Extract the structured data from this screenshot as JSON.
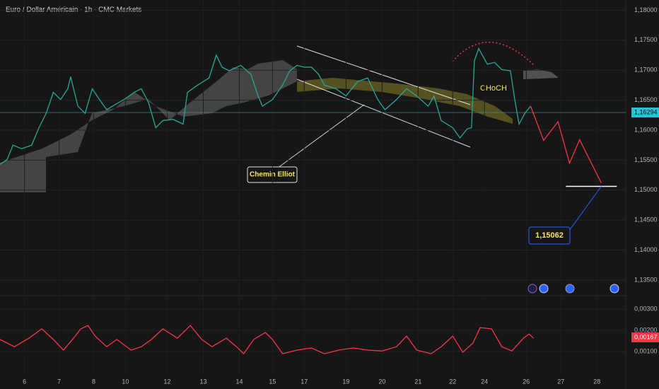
{
  "chart_data": [
    {
      "type": "line",
      "title": "Euro / Dollar Américain · 1h · CMC Markets",
      "color": "#26a69a",
      "x": [
        0,
        5,
        9,
        15,
        22,
        27,
        32,
        37,
        42,
        47,
        49,
        54,
        59,
        64,
        69,
        74,
        78,
        86,
        93,
        98,
        103,
        108,
        113,
        120,
        127,
        130,
        137,
        145,
        150,
        154,
        159,
        167,
        174,
        179,
        182,
        189,
        196,
        201,
        206,
        211,
        216,
        221,
        225,
        233,
        240,
        248,
        255,
        262,
        267,
        275,
        282,
        289,
        297,
        301,
        306,
        314,
        319,
        324,
        327,
        329,
        332,
        338,
        343,
        348,
        354,
        357,
        360,
        364,
        368
      ],
      "values": [
        1.1543,
        1.1551,
        1.1575,
        1.1569,
        1.1575,
        1.1604,
        1.1628,
        1.1663,
        1.1651,
        1.1669,
        1.1689,
        1.164,
        1.1628,
        1.1669,
        1.1651,
        1.1634,
        1.164,
        1.1651,
        1.1663,
        1.1669,
        1.1646,
        1.1604,
        1.1616,
        1.1618,
        1.161,
        1.1663,
        1.1675,
        1.1687,
        1.1725,
        1.1705,
        1.1699,
        1.1708,
        1.1693,
        1.1657,
        1.164,
        1.1651,
        1.1675,
        1.1699,
        1.1708,
        1.1705,
        1.1705,
        1.1693,
        1.1675,
        1.1669,
        1.1657,
        1.1681,
        1.1687,
        1.1651,
        1.1634,
        1.1651,
        1.1669,
        1.1657,
        1.164,
        1.1657,
        1.1616,
        1.1604,
        1.1587,
        1.1602,
        1.1604,
        1.1716,
        1.1736,
        1.171,
        1.1713,
        1.1701,
        1.1699,
        1.1651,
        1.161,
        1.1628,
        1.164
      ],
      "projection": {
        "color": "#f23645",
        "x": [
          368,
          377,
          387,
          395,
          402,
          417
        ],
        "values": [
          1.164,
          1.1583,
          1.1614,
          1.1545,
          1.1584,
          1.1512
        ]
      },
      "target": {
        "value": 1.15062,
        "label": "1,15062"
      },
      "last_price": {
        "value": 1.16294,
        "label": "1,16294"
      },
      "annotations": [
        "Chemin Elliot",
        "CHoCH"
      ],
      "xlim": [
        0,
        434
      ],
      "xticks": [
        {
          "value": 17,
          "label": "6"
        },
        {
          "value": 41,
          "label": "7"
        },
        {
          "value": 65,
          "label": "8"
        },
        {
          "value": 87,
          "label": "10"
        },
        {
          "value": 116,
          "label": "12"
        },
        {
          "value": 141,
          "label": "13"
        },
        {
          "value": 166,
          "label": "14"
        },
        {
          "value": 189,
          "label": "15"
        },
        {
          "value": 211,
          "label": "17"
        },
        {
          "value": 240,
          "label": "19"
        },
        {
          "value": 265,
          "label": "20"
        },
        {
          "value": 290,
          "label": "21"
        },
        {
          "value": 314,
          "label": "22"
        },
        {
          "value": 336,
          "label": "24"
        },
        {
          "value": 365,
          "label": "26"
        },
        {
          "value": 389,
          "label": "27"
        },
        {
          "value": 414,
          "label": "28"
        }
      ],
      "ylim": [
        1.1324,
        1.1817
      ],
      "yticks": [
        {
          "value": 1.18,
          "label": "1,18000"
        },
        {
          "value": 1.175,
          "label": "1,17500"
        },
        {
          "value": 1.17,
          "label": "1,17000"
        },
        {
          "value": 1.165,
          "label": "1,16500"
        },
        {
          "value": 1.16,
          "label": "1,16000"
        },
        {
          "value": 1.155,
          "label": "1,15500"
        },
        {
          "value": 1.15,
          "label": "1,15000"
        },
        {
          "value": 1.145,
          "label": "1,14500"
        },
        {
          "value": 1.14,
          "label": "1,14000"
        },
        {
          "value": 1.135,
          "label": "1,13500"
        }
      ]
    },
    {
      "type": "line",
      "color": "#f23645",
      "x": [
        0,
        10,
        20,
        29,
        37,
        44,
        51,
        56,
        61,
        66,
        74,
        81,
        91,
        98,
        105,
        113,
        123,
        132,
        140,
        147,
        157,
        164,
        169,
        176,
        184,
        189,
        196,
        206,
        216,
        225,
        235,
        245,
        255,
        265,
        275,
        282,
        289,
        299,
        306,
        314,
        321,
        328,
        333,
        341,
        348,
        355,
        363,
        367,
        370
      ],
      "values": [
        0.00157,
        0.00123,
        0.00163,
        0.00207,
        0.00157,
        0.00107,
        0.00163,
        0.00207,
        0.00223,
        0.00173,
        0.00123,
        0.00157,
        0.00107,
        0.00123,
        0.00157,
        0.00207,
        0.00163,
        0.00223,
        0.00157,
        0.00123,
        0.00163,
        0.00123,
        0.0009,
        0.00157,
        0.0019,
        0.00157,
        0.0009,
        0.00107,
        0.00117,
        0.0009,
        0.00107,
        0.00117,
        0.00107,
        0.00103,
        0.00123,
        0.00173,
        0.00107,
        0.0009,
        0.00123,
        0.00173,
        0.00097,
        0.0014,
        0.00213,
        0.00207,
        0.00123,
        0.00103,
        0.00163,
        0.00183,
        0.00163
      ],
      "last_value": {
        "value": 0.00167,
        "label": "0,00167"
      },
      "xlim": [
        0,
        434
      ],
      "ylim": [
        -3e-05,
        0.00357
      ],
      "yticks": [
        {
          "value": 0.003,
          "label": "0,00300"
        },
        {
          "value": 0.002,
          "label": "0,00200"
        },
        {
          "value": 0.001,
          "label": "0,00100"
        }
      ]
    }
  ]
}
